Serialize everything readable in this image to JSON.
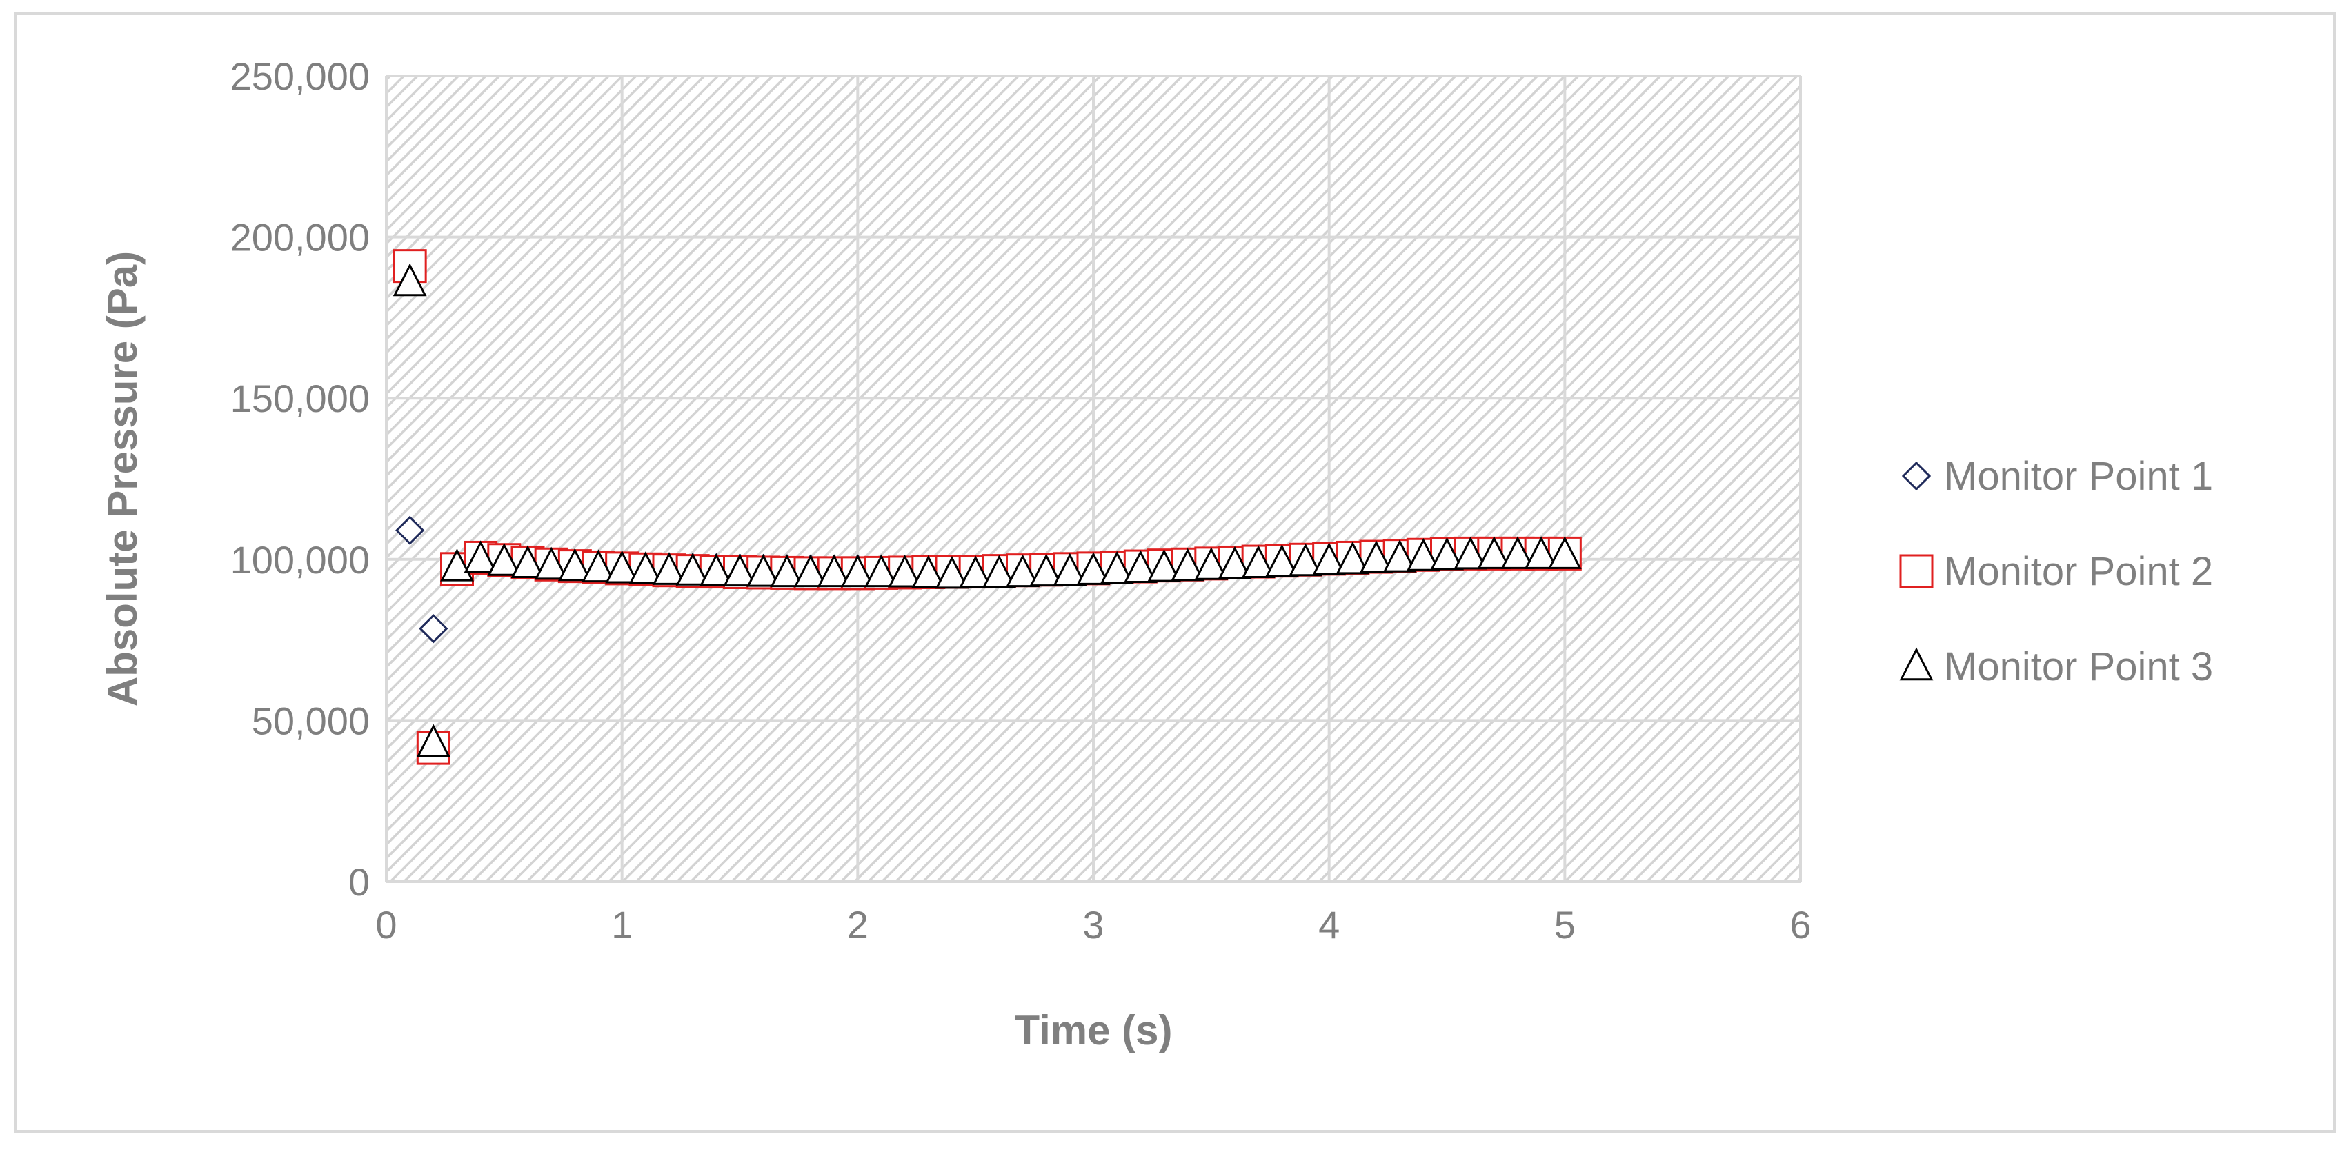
{
  "chart_data": {
    "type": "scatter",
    "title": "",
    "xlabel": "Time (s)",
    "ylabel": "Absolute Pressure (Pa)",
    "xlim": [
      0,
      6
    ],
    "ylim": [
      0,
      250000
    ],
    "x_ticks": [
      "0",
      "1",
      "2",
      "3",
      "4",
      "5",
      "6"
    ],
    "y_ticks": [
      "0",
      "50,000",
      "100,000",
      "150,000",
      "200,000",
      "250,000"
    ],
    "grid": true,
    "plot_background": "hatched light gray",
    "legend_position": "right",
    "series": [
      {
        "name": "Monitor Point 1",
        "marker": "diamond",
        "color": "#1f2a5a",
        "points": [
          [
            0.1,
            109000
          ],
          [
            0.2,
            78500
          ],
          [
            0.3,
            97000
          ],
          [
            0.4,
            100500
          ],
          [
            0.5,
            100000
          ],
          [
            0.6,
            99500
          ],
          [
            0.7,
            99000
          ],
          [
            0.8,
            98500
          ],
          [
            0.9,
            98200
          ],
          [
            1.0,
            98000
          ],
          [
            1.1,
            97800
          ],
          [
            1.2,
            97600
          ],
          [
            1.3,
            97500
          ],
          [
            1.4,
            97400
          ],
          [
            1.5,
            97300
          ],
          [
            1.6,
            97200
          ],
          [
            1.7,
            97100
          ],
          [
            1.8,
            97000
          ],
          [
            1.9,
            97000
          ],
          [
            2.0,
            97000
          ],
          [
            2.1,
            96900
          ],
          [
            2.2,
            96800
          ],
          [
            2.3,
            96700
          ],
          [
            2.4,
            96600
          ],
          [
            2.5,
            96600
          ],
          [
            2.6,
            96700
          ],
          [
            2.7,
            96800
          ],
          [
            2.8,
            96900
          ],
          [
            2.9,
            97000
          ],
          [
            3.0,
            97100
          ],
          [
            3.1,
            97200
          ],
          [
            3.2,
            97400
          ],
          [
            3.3,
            97600
          ],
          [
            3.4,
            97800
          ],
          [
            3.5,
            98000
          ],
          [
            3.6,
            98300
          ],
          [
            3.7,
            98600
          ],
          [
            3.8,
            98900
          ],
          [
            3.9,
            99200
          ],
          [
            4.0,
            99500
          ],
          [
            4.1,
            99900
          ],
          [
            4.2,
            100300
          ],
          [
            4.3,
            100700
          ],
          [
            4.4,
            101000
          ],
          [
            4.5,
            101200
          ],
          [
            4.6,
            101300
          ],
          [
            4.7,
            101300
          ],
          [
            4.8,
            101300
          ],
          [
            4.9,
            101300
          ],
          [
            5.0,
            101300
          ]
        ]
      },
      {
        "name": "Monitor Point 2",
        "marker": "square",
        "color": "#e02020",
        "points": [
          [
            0.1,
            191000
          ],
          [
            0.2,
            41500
          ],
          [
            0.3,
            97000
          ],
          [
            0.4,
            100500
          ],
          [
            0.5,
            99800
          ],
          [
            0.6,
            99000
          ],
          [
            0.7,
            98400
          ],
          [
            0.8,
            97900
          ],
          [
            0.9,
            97500
          ],
          [
            1.0,
            97200
          ],
          [
            1.1,
            96900
          ],
          [
            1.2,
            96600
          ],
          [
            1.3,
            96400
          ],
          [
            1.4,
            96200
          ],
          [
            1.5,
            96000
          ],
          [
            1.6,
            95900
          ],
          [
            1.7,
            95800
          ],
          [
            1.8,
            95700
          ],
          [
            1.9,
            95700
          ],
          [
            2.0,
            95700
          ],
          [
            2.1,
            95800
          ],
          [
            2.2,
            95900
          ],
          [
            2.3,
            96000
          ],
          [
            2.4,
            96100
          ],
          [
            2.5,
            96200
          ],
          [
            2.6,
            96400
          ],
          [
            2.7,
            96600
          ],
          [
            2.8,
            96800
          ],
          [
            2.9,
            97000
          ],
          [
            3.0,
            97200
          ],
          [
            3.1,
            97500
          ],
          [
            3.2,
            97800
          ],
          [
            3.3,
            98100
          ],
          [
            3.4,
            98400
          ],
          [
            3.5,
            98700
          ],
          [
            3.6,
            99000
          ],
          [
            3.7,
            99300
          ],
          [
            3.8,
            99600
          ],
          [
            3.9,
            99900
          ],
          [
            4.0,
            100200
          ],
          [
            4.1,
            100500
          ],
          [
            4.2,
            100800
          ],
          [
            4.3,
            101100
          ],
          [
            4.4,
            101400
          ],
          [
            4.5,
            101700
          ],
          [
            4.6,
            101800
          ],
          [
            4.7,
            101800
          ],
          [
            4.8,
            101800
          ],
          [
            4.9,
            101800
          ],
          [
            5.0,
            101800
          ]
        ]
      },
      {
        "name": "Monitor Point 3",
        "marker": "triangle",
        "color": "#000000",
        "points": [
          [
            0.1,
            186000
          ],
          [
            0.2,
            43000
          ],
          [
            0.3,
            97500
          ],
          [
            0.4,
            100000
          ],
          [
            0.5,
            99200
          ],
          [
            0.6,
            98500
          ],
          [
            0.7,
            98000
          ],
          [
            0.8,
            97600
          ],
          [
            0.9,
            97200
          ],
          [
            1.0,
            96900
          ],
          [
            1.1,
            96600
          ],
          [
            1.2,
            96400
          ],
          [
            1.3,
            96200
          ],
          [
            1.4,
            96000
          ],
          [
            1.5,
            95900
          ],
          [
            1.6,
            95800
          ],
          [
            1.7,
            95700
          ],
          [
            1.8,
            95700
          ],
          [
            1.9,
            95700
          ],
          [
            2.0,
            95700
          ],
          [
            2.1,
            95700
          ],
          [
            2.2,
            95600
          ],
          [
            2.3,
            95400
          ],
          [
            2.4,
            95200
          ],
          [
            2.5,
            95300
          ],
          [
            2.6,
            95500
          ],
          [
            2.7,
            95700
          ],
          [
            2.8,
            95900
          ],
          [
            2.9,
            96100
          ],
          [
            3.0,
            96400
          ],
          [
            3.1,
            96700
          ],
          [
            3.2,
            97000
          ],
          [
            3.3,
            97300
          ],
          [
            3.4,
            97600
          ],
          [
            3.5,
            97900
          ],
          [
            3.6,
            98200
          ],
          [
            3.7,
            98500
          ],
          [
            3.8,
            98800
          ],
          [
            3.9,
            99100
          ],
          [
            4.0,
            99400
          ],
          [
            4.1,
            99700
          ],
          [
            4.2,
            100000
          ],
          [
            4.3,
            100300
          ],
          [
            4.4,
            100700
          ],
          [
            4.5,
            101000
          ],
          [
            4.6,
            101200
          ],
          [
            4.7,
            101300
          ],
          [
            4.8,
            101300
          ],
          [
            4.9,
            101300
          ],
          [
            5.0,
            101300
          ]
        ]
      }
    ]
  }
}
